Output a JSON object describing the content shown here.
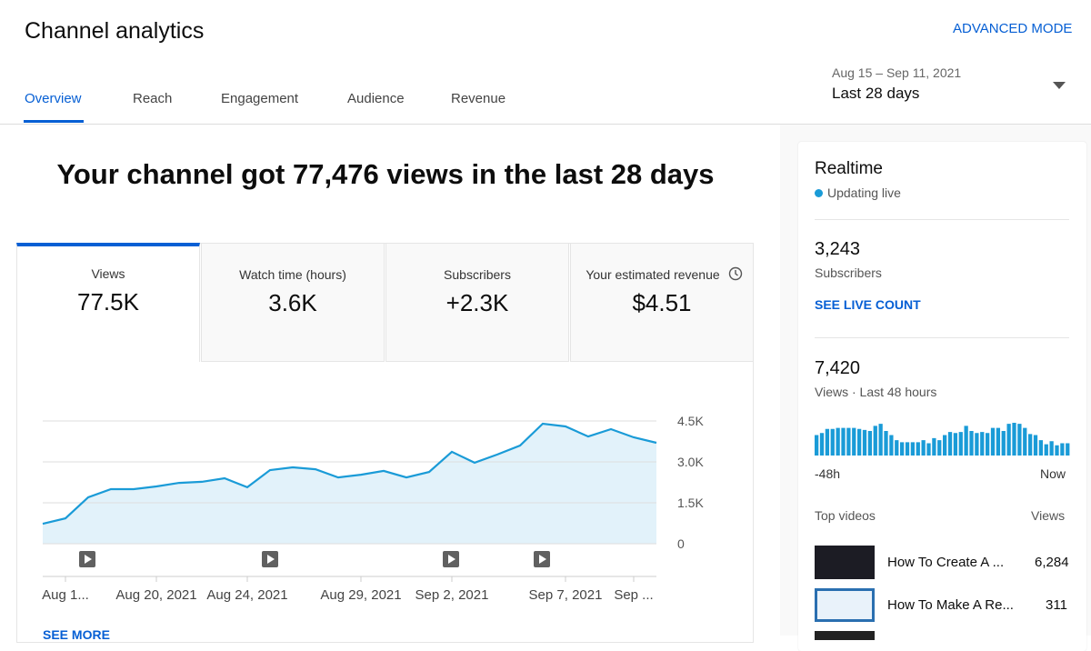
{
  "header": {
    "title": "Channel analytics",
    "advanced": "ADVANCED MODE",
    "tabs": [
      "Overview",
      "Reach",
      "Engagement",
      "Audience",
      "Revenue"
    ],
    "date_range": "Aug 15 – Sep 11, 2021",
    "period": "Last 28 days"
  },
  "headline": "Your channel got 77,476 views in the last 28 days",
  "metrics": [
    {
      "label": "Views",
      "value": "77.5K"
    },
    {
      "label": "Watch time (hours)",
      "value": "3.6K"
    },
    {
      "label": "Subscribers",
      "value": "+2.3K"
    },
    {
      "label": "Your estimated revenue",
      "value": "$4.51"
    }
  ],
  "chart": {
    "type": "line",
    "x": [
      null,
      "Aug 1...",
      null,
      null,
      null,
      "Aug 20, 2021",
      null,
      null,
      null,
      "Aug 24, 2021",
      null,
      null,
      null,
      null,
      "Aug 29, 2021",
      null,
      null,
      null,
      "Sep 2, 2021",
      null,
      null,
      null,
      null,
      "Sep 7, 2021",
      null,
      null,
      "Sep ...",
      null
    ],
    "values": [
      730,
      930,
      1700,
      2000,
      2000,
      2100,
      2230,
      2270,
      2400,
      2070,
      2700,
      2800,
      2730,
      2430,
      2530,
      2670,
      2430,
      2630,
      3370,
      2970,
      3270,
      3600,
      4400,
      4300,
      3930,
      4200,
      3900,
      3700
    ],
    "ylim": [
      0,
      4500
    ],
    "yticks": [
      0,
      {
        "value": 1500,
        "label": "1.5K"
      },
      {
        "value": 3000,
        "label": "3.0K"
      },
      {
        "value": 4500,
        "label": "4.5K"
      }
    ],
    "color": "#1a9bd7",
    "fill": "#e2f2fa",
    "grid": true
  },
  "see_more": "SEE MORE",
  "realtime": {
    "title": "Realtime",
    "status": "Updating live",
    "subscribers": "3,243",
    "subscribers_label": "Subscribers",
    "live_count": "SEE LIVE COUNT",
    "views": "7,420",
    "views_label": "Views · Last 48 hours",
    "bars": [
      120,
      132,
      156,
      156,
      162,
      162,
      162,
      162,
      156,
      150,
      144,
      174,
      186,
      144,
      120,
      90,
      78,
      78,
      78,
      78,
      90,
      72,
      102,
      90,
      120,
      138,
      132,
      138,
      174,
      144,
      132,
      138,
      132,
      162,
      162,
      144,
      186,
      192,
      186,
      162,
      126,
      120,
      90,
      66,
      84,
      60,
      72,
      72
    ],
    "color": "#1a9bd7",
    "start_label": "-48h",
    "end_label": "Now",
    "top_videos_title": "Top videos",
    "views_col": "Views",
    "videos": [
      {
        "title": "How To Create A ...",
        "views": "6,284"
      },
      {
        "title": "How To Make A Re...",
        "views": "311"
      }
    ]
  }
}
